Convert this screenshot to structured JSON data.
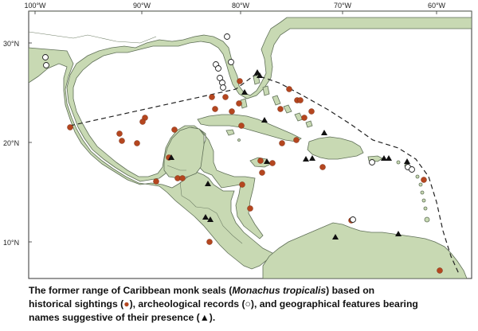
{
  "map": {
    "lon_labels": [
      "100°W",
      "90°W",
      "80°W",
      "70°W",
      "60°W"
    ],
    "lat_labels": [
      "30°N",
      "20°N",
      "10°N"
    ],
    "colors": {
      "land": "#c8d9b3",
      "land_border": "#5f6f57",
      "sea": "#ffffff",
      "sighting": "#b5461f",
      "feature": "#111111",
      "range_line": "#222222"
    },
    "legend_symbols": {
      "historical_sighting": "filled-circle",
      "archeological_record": "open-circle",
      "place_name": "filled-triangle"
    }
  },
  "caption": {
    "line1_a": "The former range of Caribbean monk seals (",
    "species": "Monachus tropicalis",
    "line1_b": ") based on",
    "line2_a": "historical sightings (",
    "sym_sighting": "●",
    "line2_b": "), archeological records (",
    "sym_archeo": "○",
    "line2_c": "), and geographical features bearing",
    "line3_a": "names suggestive of their presence (",
    "sym_feature": "▲",
    "line3_b": ")."
  }
}
